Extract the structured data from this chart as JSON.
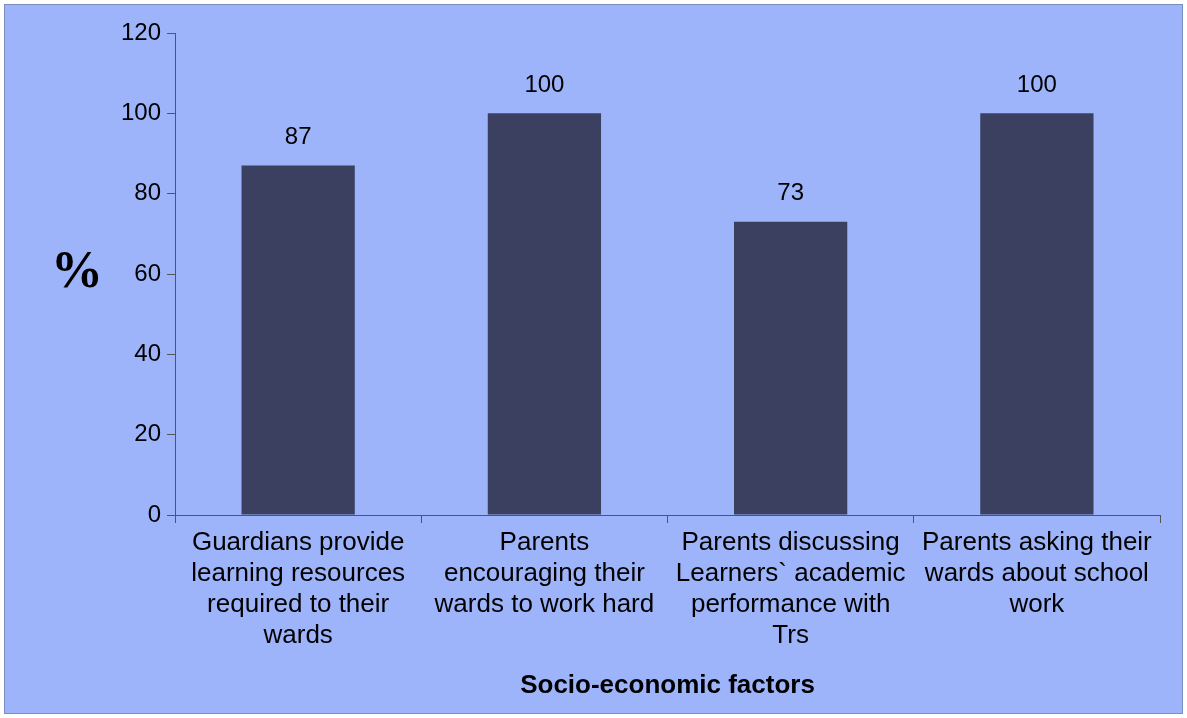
{
  "chart_data": {
    "type": "bar",
    "xlabel": "Socio-economic factors",
    "ylabel": "%",
    "categories": [
      "Guardians provide learning resources required to their wards",
      "Parents encouraging their wards to work hard",
      "Parents discussing Learners` academic performance with Trs",
      "Parents asking their wards about school work"
    ],
    "values": [
      87,
      100,
      73,
      100
    ],
    "color": "#3b4060",
    "ylim": [
      0,
      120
    ],
    "yticks": [
      0,
      20,
      40,
      60,
      80,
      100,
      120
    ],
    "grid": false,
    "legend": false,
    "data_labels": true
  }
}
